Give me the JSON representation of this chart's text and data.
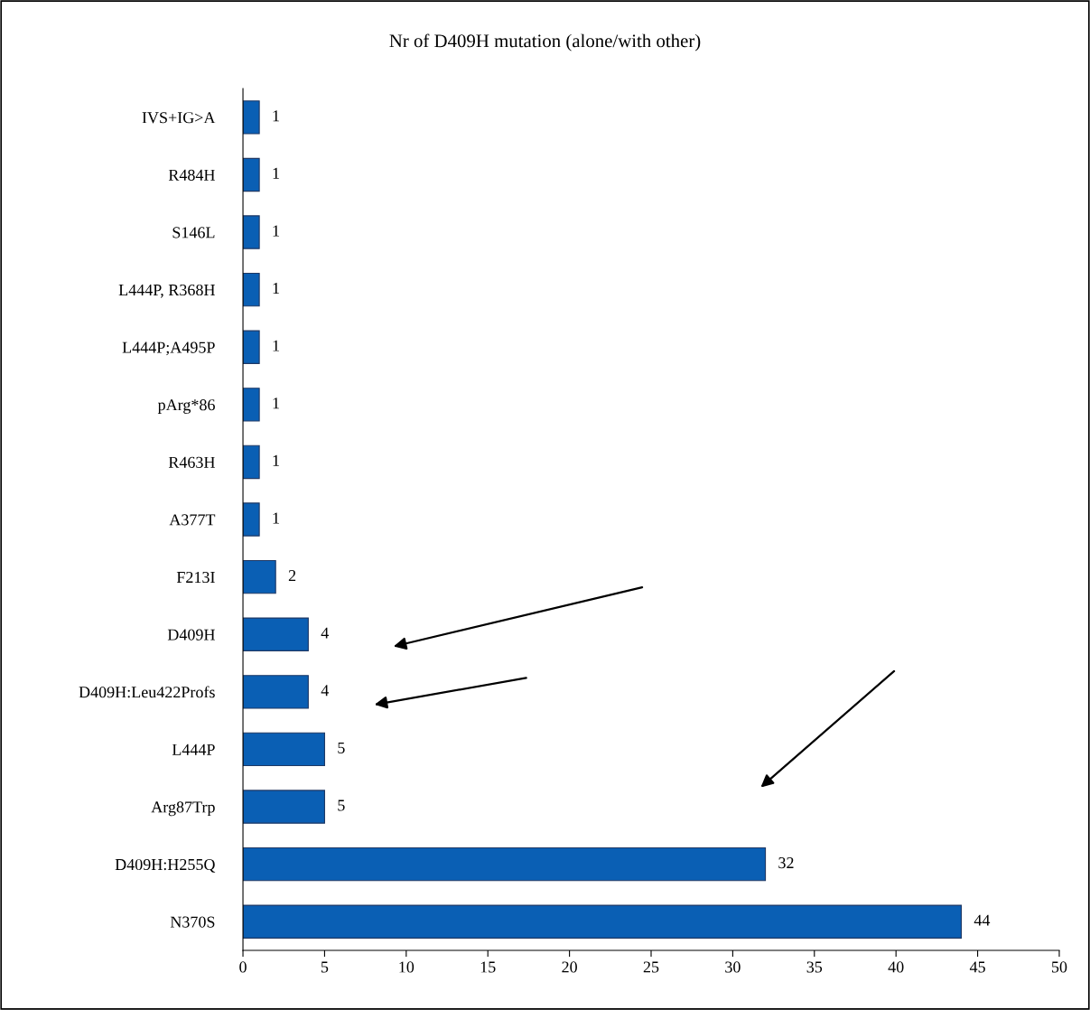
{
  "chart_data": {
    "type": "bar",
    "orientation": "horizontal",
    "title": "Nr of D409H mutation (alone/with other)",
    "categories": [
      "IVS+IG>A",
      "R484H",
      "S146L",
      "L444P, R368H",
      "L444P;A495P",
      "pArg*86",
      "R463H",
      "A377T",
      "F213I",
      "D409H",
      "D409H:Leu422Profs",
      "L444P",
      "Arg87Trp",
      "D409H:H255Q",
      "N370S"
    ],
    "values": [
      1,
      1,
      1,
      1,
      1,
      1,
      1,
      1,
      2,
      4,
      4,
      5,
      5,
      32,
      44
    ],
    "color": "#0a5fb4",
    "xlim": [
      0,
      50
    ],
    "xticks": [
      0,
      5,
      10,
      15,
      20,
      25,
      30,
      35,
      40,
      45,
      50
    ],
    "data_labels": true,
    "grid": false,
    "legend": false
  }
}
